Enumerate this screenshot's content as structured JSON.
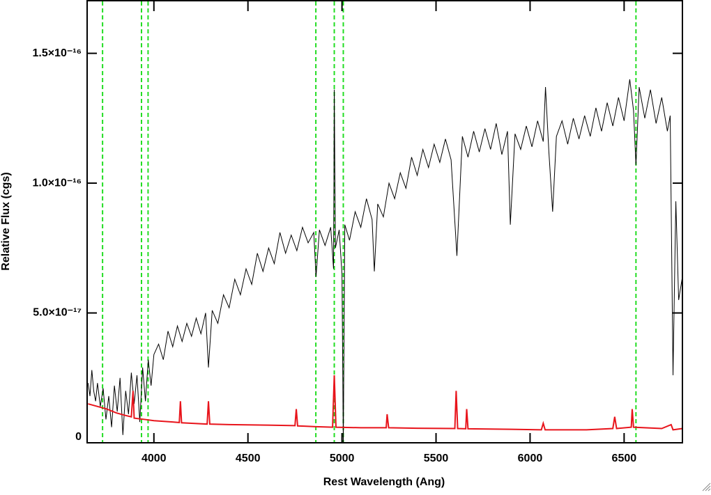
{
  "chart_data": {
    "type": "line",
    "xlabel": "Rest Wavelength (Ang)",
    "ylabel": "Relative Flux (cgs)",
    "xlim": [
      3645,
      6810
    ],
    "ylim": [
      0,
      1.7e-16
    ],
    "xticks": [
      4000,
      4500,
      5000,
      5500,
      6000,
      6500
    ],
    "yticks": [
      0,
      {
        "value": 5e-17,
        "label": "5.0×10⁻¹⁷"
      },
      {
        "value": 1e-16,
        "label": "1.0×10⁻¹⁶"
      },
      {
        "value": 1.5e-16,
        "label": "1.5×10⁻¹⁶"
      }
    ],
    "vlines": [
      3727,
      3934,
      3969,
      4861,
      4959,
      5007,
      6563
    ],
    "vline_color": "#22dd22",
    "series": [
      {
        "color": "#000000",
        "x": [
          3650,
          3660,
          3670,
          3680,
          3690,
          3700,
          3715,
          3730,
          3745,
          3760,
          3775,
          3790,
          3805,
          3820,
          3835,
          3850,
          3865,
          3880,
          3895,
          3910,
          3925,
          3940,
          3955,
          3970,
          3985,
          4000,
          4025,
          4050,
          4075,
          4100,
          4125,
          4150,
          4175,
          4200,
          4225,
          4250,
          4275,
          4290,
          4310,
          4340,
          4370,
          4400,
          4430,
          4460,
          4490,
          4520,
          4550,
          4580,
          4610,
          4640,
          4670,
          4700,
          4730,
          4760,
          4790,
          4820,
          4850,
          4862,
          4880,
          4910,
          4940,
          4955,
          4959,
          4965,
          4985,
          5000,
          5007,
          5015,
          5040,
          5070,
          5100,
          5130,
          5160,
          5172,
          5190,
          5220,
          5250,
          5280,
          5310,
          5340,
          5370,
          5400,
          5430,
          5460,
          5490,
          5520,
          5550,
          5580,
          5611,
          5640,
          5670,
          5700,
          5730,
          5760,
          5790,
          5820,
          5850,
          5880,
          5895,
          5920,
          5950,
          5980,
          6010,
          6040,
          6070,
          6082,
          6100,
          6120,
          6140,
          6170,
          6200,
          6230,
          6260,
          6290,
          6320,
          6350,
          6380,
          6410,
          6440,
          6470,
          6500,
          6530,
          6550,
          6563,
          6580,
          6610,
          6640,
          6670,
          6700,
          6730,
          6745,
          6760,
          6775,
          6790,
          6810
        ],
        "values": [
          2.3e-17,
          1.8e-17,
          2.8e-17,
          2e-17,
          1.6e-17,
          2.3e-17,
          1.4e-17,
          2.1e-17,
          9e-18,
          1.8e-17,
          6e-18,
          2.2e-17,
          1.2e-17,
          2.5e-17,
          3e-18,
          2e-17,
          1.1e-17,
          2.7e-17,
          1.5e-17,
          2.6e-17,
          8e-18,
          2.9e-17,
          1.6e-17,
          3.2e-17,
          2.2e-17,
          3.4e-17,
          3.8e-17,
          3.2e-17,
          4.3e-17,
          3.7e-17,
          4.5e-17,
          3.9e-17,
          4.6e-17,
          4.1e-17,
          4.8e-17,
          4.2e-17,
          5e-17,
          2.9e-17,
          5.1e-17,
          4.6e-17,
          5.7e-17,
          5.2e-17,
          6.3e-17,
          5.7e-17,
          6.7e-17,
          6.1e-17,
          7.3e-17,
          6.6e-17,
          7.5e-17,
          6.9e-17,
          8.1e-17,
          7.3e-17,
          8e-17,
          7.4e-17,
          8.3e-17,
          7.7e-17,
          8.1e-17,
          6.4e-17,
          8.2e-17,
          7.6e-17,
          8.3e-17,
          6.7e-17,
          1.36e-16,
          7.5e-17,
          8.2e-17,
          6.5e-17,
          0,
          8.4e-17,
          7.8e-17,
          8.9e-17,
          8.3e-17,
          9.4e-17,
          8.6e-17,
          6.6e-17,
          9.2e-17,
          8.7e-17,
          1e-16,
          9.4e-17,
          1.04e-16,
          9.8e-17,
          1.1e-16,
          1.03e-16,
          1.13e-16,
          1.06e-16,
          1.15e-16,
          1.08e-16,
          1.17e-16,
          1.09e-16,
          7.2e-17,
          1.18e-16,
          1.1e-16,
          1.2e-16,
          1.12e-16,
          1.21e-16,
          1.13e-16,
          1.23e-16,
          1.11e-16,
          1.2e-16,
          8.4e-17,
          1.19e-16,
          1.13e-16,
          1.22e-16,
          1.14e-16,
          1.24e-16,
          1.16e-16,
          1.37e-16,
          1.12e-16,
          8.9e-17,
          1.18e-16,
          1.24e-16,
          1.15e-16,
          1.25e-16,
          1.17e-16,
          1.26e-16,
          1.18e-16,
          1.29e-16,
          1.2e-16,
          1.31e-16,
          1.22e-16,
          1.33e-16,
          1.24e-16,
          1.4e-16,
          1.28e-16,
          1.07e-16,
          1.37e-16,
          1.25e-16,
          1.36e-16,
          1.23e-16,
          1.33e-16,
          1.2e-16,
          1.26e-16,
          2.6e-17,
          9.3e-17,
          5.5e-17,
          6.4e-17
        ]
      },
      {
        "color": "#e8141b",
        "x": [
          3650,
          3700,
          3750,
          3800,
          3850,
          3880,
          3889,
          3895,
          3950,
          4000,
          4100,
          4135,
          4141,
          4147,
          4200,
          4283,
          4290,
          4297,
          4400,
          4600,
          4750,
          4757,
          4764,
          4800,
          4861,
          4950,
          4959,
          4968,
          5100,
          5235,
          5240,
          5248,
          5400,
          5600,
          5607,
          5615,
          5658,
          5663,
          5670,
          5900,
          6060,
          6070,
          6080,
          6300,
          6440,
          6450,
          6460,
          6538,
          6543,
          6550,
          6700,
          6750,
          6760,
          6810
        ],
        "values": [
          1.5e-17,
          1.4e-17,
          1.3e-17,
          1.15e-17,
          1.05e-17,
          1e-17,
          2e-17,
          9.5e-18,
          9e-18,
          8.5e-18,
          8e-18,
          7.8e-18,
          1.6e-17,
          7.7e-18,
          7.5e-18,
          7.2e-18,
          1.6e-17,
          7.2e-18,
          7e-18,
          6.8e-18,
          6.6e-18,
          1.3e-17,
          6.5e-18,
          6.4e-18,
          6.2e-18,
          6e-18,
          2.6e-17,
          6e-18,
          5.8e-18,
          5.8e-18,
          1.1e-17,
          5.8e-18,
          5.6e-18,
          5.5e-18,
          2e-17,
          5.5e-18,
          5.4e-18,
          1.3e-17,
          5.4e-18,
          5.2e-18,
          5e-18,
          7.5e-18,
          5e-18,
          5e-18,
          5.5e-18,
          1e-17,
          5.5e-18,
          6e-18,
          1.3e-17,
          6e-18,
          5.5e-18,
          7e-18,
          5e-18,
          5.5e-18
        ]
      }
    ]
  }
}
